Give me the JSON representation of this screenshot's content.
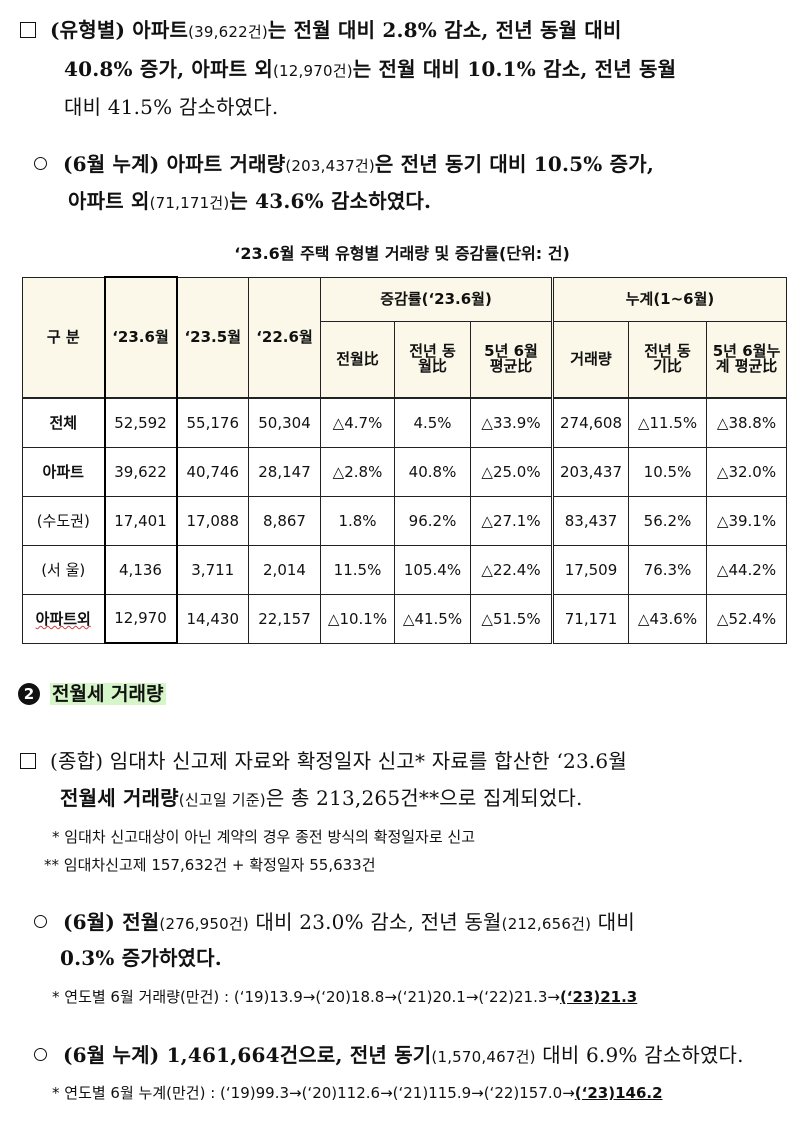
{
  "para1": {
    "l1_a": "(유형별) 아파트",
    "l1_b": "(39,622건)",
    "l1_c": "는 전월 대비 2.8% 감소, 전년 동월 대비",
    "l2_a": "40.8% 증가, 아파트 외",
    "l2_b": "(12,970건)",
    "l2_c": "는 전월 대비 10.1% 감소, 전년 동월",
    "l3": "대비 41.5% 감소하였다."
  },
  "para2": {
    "l1_a": "(6월 누계) 아파트 거래량",
    "l1_b": "(203,437건)",
    "l1_c": "은 전년 동기 대비 10.5% 증가,",
    "l2_a": "아파트 외",
    "l2_b": "(71,171건)",
    "l2_c": "는 43.6% 감소하였다."
  },
  "table": {
    "caption": "‘23.6월 주택 유형별 거래량 및 증감률(단위: 건)",
    "h_category": "구 분",
    "h_c1": "‘23.6월",
    "h_c2": "‘23.5월",
    "h_c3": "‘22.6월",
    "h_group1": "증감률(‘23.6월)",
    "h_group2": "누계(1~6월)",
    "h_g1a": "전월比",
    "h_g1b": "전년 동월比",
    "h_g1c": "5년 6월 평균比",
    "h_g2a": "거래량",
    "h_g2b": "전년 동기比",
    "h_g2c": "5년 6월누계 평균比",
    "rows": [
      {
        "label": "전체",
        "cells": [
          "52,592",
          "55,176",
          "50,304",
          "△4.7%",
          "4.5%",
          "△33.9%",
          "274,608",
          "△11.5%",
          "△38.8%"
        ]
      },
      {
        "label": "아파트",
        "cells": [
          "39,622",
          "40,746",
          "28,147",
          "△2.8%",
          "40.8%",
          "△25.0%",
          "203,437",
          "10.5%",
          "△32.0%"
        ]
      },
      {
        "label": "(수도권)",
        "cells": [
          "17,401",
          "17,088",
          "8,867",
          "1.8%",
          "96.2%",
          "△27.1%",
          "83,437",
          "56.2%",
          "△39.1%"
        ]
      },
      {
        "label": "(서 울)",
        "cells": [
          "4,136",
          "3,711",
          "2,014",
          "11.5%",
          "105.4%",
          "△22.4%",
          "17,509",
          "76.3%",
          "△44.2%"
        ]
      },
      {
        "label": "아파트외",
        "cells": [
          "12,970",
          "14,430",
          "22,157",
          "△10.1%",
          "△41.5%",
          "△51.5%",
          "71,171",
          "△43.6%",
          "△52.4%"
        ]
      }
    ]
  },
  "section2": {
    "num": "2",
    "title": "전월세 거래량"
  },
  "para3": {
    "l1": "(종합) 임대차 신고제 자료와 확정일자 신고* 자료를 합산한 ‘23.6월",
    "l2_a": "전월세 거래량",
    "l2_b": "(신고일 기준)",
    "l2_c": "은 총 213,265건**으로 집계되었다.",
    "note1": "* 임대차 신고대상이 아닌 계약의 경우 종전 방식의 확정일자로 신고",
    "note2": "** 임대차신고제 157,632건 + 확정일자 55,633건"
  },
  "para4": {
    "l1_a": "(6월) 전월",
    "l1_b": "(276,950건)",
    "l1_c": "대비 23.0% 감소, 전년 동월",
    "l1_d": "(212,656건)",
    "l1_e": "대비",
    "l2": "0.3% 증가하였다.",
    "note": "* 연도별 6월 거래량(만건) : (‘19)13.9→(‘20)18.8→(‘21)20.1→(‘22)21.3→",
    "note_last": "(‘23)21.3"
  },
  "para5": {
    "l1_a": "(6월 누계) 1,461,664건으로, 전년 동기",
    "l1_b": "(1,570,467건)",
    "l1_c": "대비 6.9% 감소하였다.",
    "note": "* 연도별 6월 누계(만건) : (‘19)99.3→(‘20)112.6→(‘21)115.9→(‘22)157.0→",
    "note_last": "(‘23)146.2"
  }
}
